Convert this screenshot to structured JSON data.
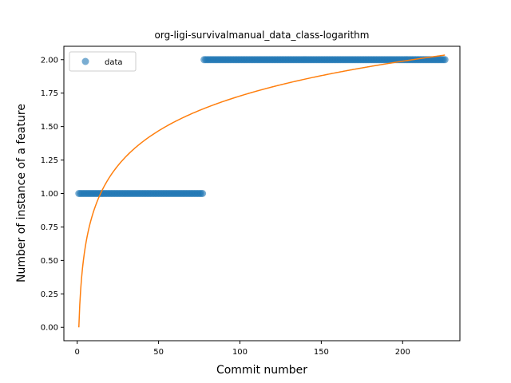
{
  "chart_data": {
    "type": "scatter",
    "title": "org-ligi-survivalmanual_data_class-logarithm",
    "xlabel": "Commit number",
    "ylabel": "Number of instance of a feature",
    "xlim": [
      -8.2,
      235.2
    ],
    "ylim": [
      -0.1,
      2.1
    ],
    "xticks": [
      0,
      50,
      100,
      150,
      200
    ],
    "xtick_labels": [
      "0",
      "50",
      "100",
      "150",
      "200"
    ],
    "yticks": [
      0.0,
      0.25,
      0.5,
      0.75,
      1.0,
      1.25,
      1.5,
      1.75,
      2.0
    ],
    "ytick_labels": [
      "0.00",
      "0.25",
      "0.50",
      "0.75",
      "1.00",
      "1.25",
      "1.50",
      "1.75",
      "2.00"
    ],
    "grid": false,
    "legend_position": "top-left",
    "series": [
      {
        "name": "data",
        "kind": "points",
        "color": "#1f77b4",
        "segments": [
          {
            "x_start": 1,
            "x_end": 77,
            "y": 1.0
          },
          {
            "x_start": 78,
            "x_end": 226,
            "y": 2.0
          }
        ]
      },
      {
        "kind": "line",
        "color": "#ff7f0e",
        "function": "a + b*ln(x)",
        "a": 0.0,
        "b": 0.3753,
        "x_range": [
          1,
          226
        ]
      }
    ]
  }
}
